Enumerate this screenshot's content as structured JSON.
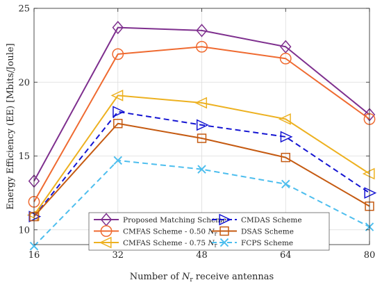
{
  "chart_data": {
    "type": "line",
    "x": [
      16,
      32,
      48,
      64,
      80
    ],
    "xlabel_prefix": "Number of ",
    "xlabel_var": "N",
    "xlabel_sub": "r",
    "xlabel_suffix": " receive antennas",
    "ylabel": "Energy Efficiency (EE) [Mbits/Joule]",
    "xlim": [
      16,
      80
    ],
    "ylim": [
      9,
      25
    ],
    "yticks": [
      10,
      15,
      20,
      25
    ],
    "grid": true,
    "legend_position": "bottom-center",
    "series": [
      {
        "name": "Proposed Matching Scheme",
        "values": [
          13.3,
          23.7,
          23.5,
          22.4,
          17.8
        ],
        "color": "#7E2F8E",
        "marker": "diamond",
        "dash": false
      },
      {
        "name": "CMFAS Scheme - 0.50 ",
        "name_var": "N",
        "name_sub": "r",
        "values": [
          11.9,
          21.9,
          22.4,
          21.6,
          17.5
        ],
        "color": "#EF6A30",
        "marker": "circle",
        "dash": false
      },
      {
        "name": "CMFAS Scheme - 0.75 ",
        "name_var": "N",
        "name_sub": "r",
        "values": [
          11.0,
          19.1,
          18.6,
          17.5,
          13.8
        ],
        "color": "#EDB120",
        "marker": "triangle-left",
        "dash": false
      },
      {
        "name": "CMDAS Scheme",
        "values": [
          10.9,
          18.0,
          17.1,
          16.3,
          12.5
        ],
        "color": "#1414D2",
        "marker": "triangle-right",
        "dash": true
      },
      {
        "name": "DSAS Scheme",
        "values": [
          10.9,
          17.2,
          16.2,
          14.9,
          11.6
        ],
        "color": "#C55A11",
        "marker": "square",
        "dash": false
      },
      {
        "name": "FCPS Scheme",
        "values": [
          8.9,
          14.7,
          14.1,
          13.1,
          10.2
        ],
        "color": "#4DBEEE",
        "marker": "x",
        "dash": true
      }
    ]
  }
}
